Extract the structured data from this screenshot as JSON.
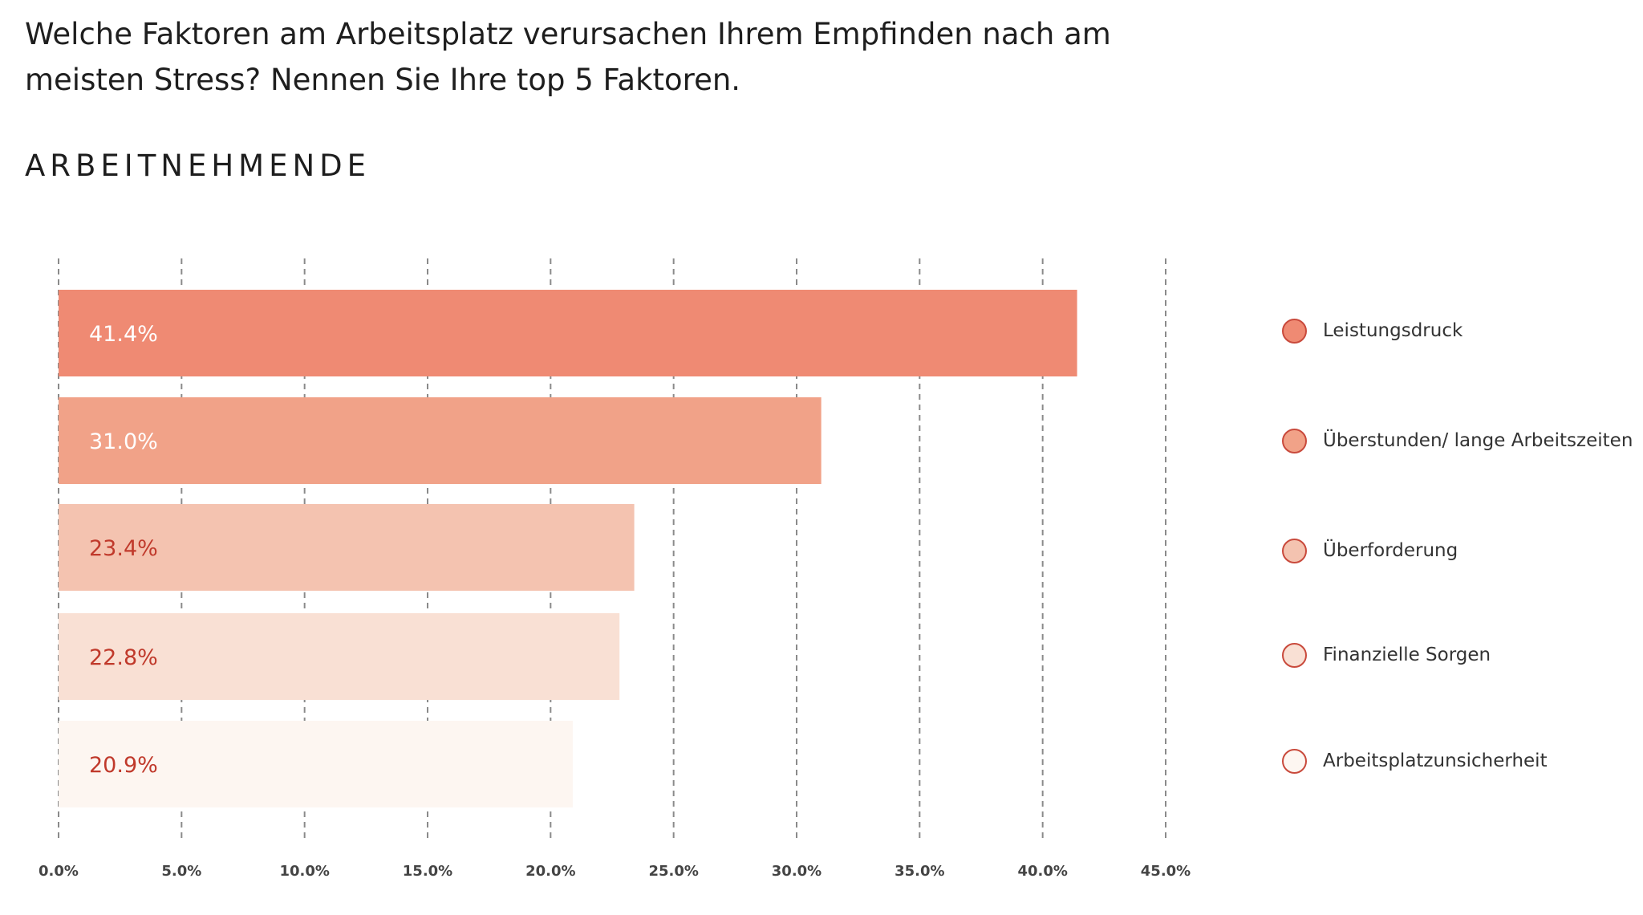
{
  "header": {
    "question": "Welche Faktoren am Arbeitsplatz verursachen Ihrem Empfinden nach am meisten Stress? Nennen Sie Ihre top 5 Faktoren.",
    "segment": "ARBEITNEHMENDE"
  },
  "chart_data": {
    "type": "bar",
    "orientation": "horizontal",
    "categories": [
      "Leistungsdruck",
      "Überstunden/ lange Arbeitszeiten",
      "Überforderung",
      "Finanzielle Sorgen",
      "Arbeitsplatzunsicherheit"
    ],
    "values": [
      41.4,
      31.0,
      23.4,
      22.8,
      20.9
    ],
    "value_labels": [
      "41.4%",
      "31.0%",
      "23.4%",
      "22.8%",
      "20.9%"
    ],
    "colors": [
      "#ef8a73",
      "#f1a288",
      "#f4c3b0",
      "#f9e0d4",
      "#fdf6f1"
    ],
    "label_colors": [
      "#ffffff",
      "#ffffff",
      "#c0392b",
      "#c0392b",
      "#c0392b"
    ],
    "xlim": [
      0,
      45
    ],
    "xticks": [
      0,
      5,
      10,
      15,
      20,
      25,
      30,
      35,
      40,
      45
    ],
    "xtick_labels": [
      "0.0%",
      "5.0%",
      "10.0%",
      "15.0%",
      "20.0%",
      "25.0%",
      "30.0%",
      "35.0%",
      "40.0%",
      "45.0%"
    ],
    "grid": "vertical dashed",
    "legend_position": "right",
    "legend_marker_border": "#c94a3c"
  }
}
